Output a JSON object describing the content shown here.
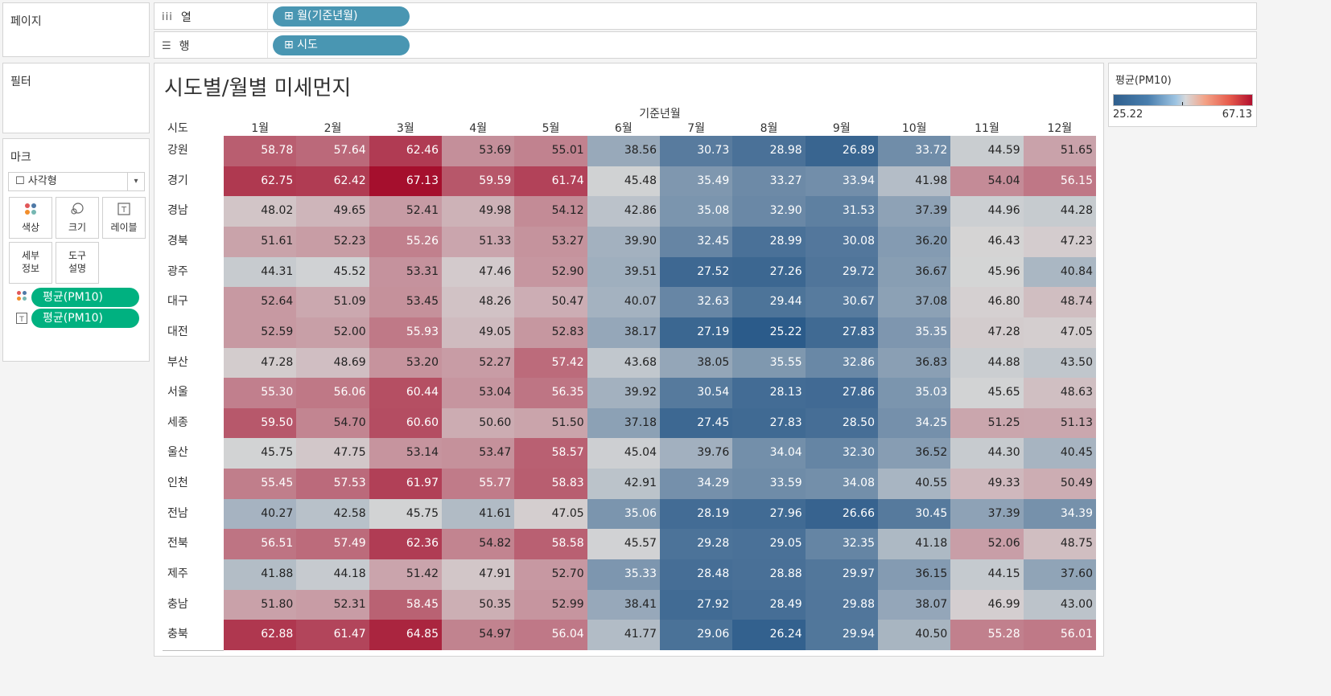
{
  "pages_panel": {
    "title": "페이지"
  },
  "columns_shelf": {
    "icon": "columns-icon",
    "label": "열",
    "pill": "⊞ 월(기준년월)"
  },
  "rows_shelf": {
    "icon": "rows-icon",
    "label": "행",
    "pill": "⊞ 시도"
  },
  "filters_panel": {
    "title": "필터"
  },
  "marks_panel": {
    "title": "마크",
    "mark_type": "☐ 사각형",
    "buttons": [
      {
        "icon": "color-icon",
        "label": "색상"
      },
      {
        "icon": "size-icon",
        "label": "크기"
      },
      {
        "icon": "label-icon",
        "label": "레이블"
      },
      {
        "icon": "detail-icon",
        "label": "세부\n정보"
      },
      {
        "icon": "tooltip-icon",
        "label": "도구\n설명"
      }
    ],
    "fields": [
      {
        "icon": "color-icon",
        "label": "평균(PM10)"
      },
      {
        "icon": "label-icon",
        "label": "평균(PM10)"
      }
    ]
  },
  "legend": {
    "title": "평균(PM10)",
    "min": "25.22",
    "max": "67.13"
  },
  "chart_data": {
    "type": "heatmap",
    "title": "시도별/월별 미세먼지",
    "x_field": "기준년월",
    "row_field": "시도",
    "columns": [
      "1월",
      "2월",
      "3월",
      "4월",
      "5월",
      "6월",
      "7월",
      "8월",
      "9월",
      "10월",
      "11월",
      "12월"
    ],
    "rows": [
      "강원",
      "경기",
      "경남",
      "경북",
      "광주",
      "대구",
      "대전",
      "부산",
      "서울",
      "세종",
      "울산",
      "인천",
      "전남",
      "전북",
      "제주",
      "충남",
      "충북"
    ],
    "values": [
      [
        "58.78",
        "57.64",
        "62.46",
        "53.69",
        "55.01",
        "38.56",
        "30.73",
        "28.98",
        "26.89",
        "33.72",
        "44.59",
        "51.65"
      ],
      [
        "62.75",
        "62.42",
        "67.13",
        "59.59",
        "61.74",
        "45.48",
        "35.49",
        "33.27",
        "33.94",
        "41.98",
        "54.04",
        "56.15"
      ],
      [
        "48.02",
        "49.65",
        "52.41",
        "49.98",
        "54.12",
        "42.86",
        "35.08",
        "32.90",
        "31.53",
        "37.39",
        "44.96",
        "44.28"
      ],
      [
        "51.61",
        "52.23",
        "55.26",
        "51.33",
        "53.27",
        "39.90",
        "32.45",
        "28.99",
        "30.08",
        "36.20",
        "46.43",
        "47.23"
      ],
      [
        "44.31",
        "45.52",
        "53.31",
        "47.46",
        "52.90",
        "39.51",
        "27.52",
        "27.26",
        "29.72",
        "36.67",
        "45.96",
        "40.84"
      ],
      [
        "52.64",
        "51.09",
        "53.45",
        "48.26",
        "50.47",
        "40.07",
        "32.63",
        "29.44",
        "30.67",
        "37.08",
        "46.80",
        "48.74"
      ],
      [
        "52.59",
        "52.00",
        "55.93",
        "49.05",
        "52.83",
        "38.17",
        "27.19",
        "25.22",
        "27.83",
        "35.35",
        "47.28",
        "47.05"
      ],
      [
        "47.28",
        "48.69",
        "53.20",
        "52.27",
        "57.42",
        "43.68",
        "38.05",
        "35.55",
        "32.86",
        "36.83",
        "44.88",
        "43.50"
      ],
      [
        "55.30",
        "56.06",
        "60.44",
        "53.04",
        "56.35",
        "39.92",
        "30.54",
        "28.13",
        "27.86",
        "35.03",
        "45.65",
        "48.63"
      ],
      [
        "59.50",
        "54.70",
        "60.60",
        "50.60",
        "51.50",
        "37.18",
        "27.45",
        "27.83",
        "28.50",
        "34.25",
        "51.25",
        "51.13"
      ],
      [
        "45.75",
        "47.75",
        "53.14",
        "53.47",
        "58.57",
        "45.04",
        "39.76",
        "34.04",
        "32.30",
        "36.52",
        "44.30",
        "40.45"
      ],
      [
        "55.45",
        "57.53",
        "61.97",
        "55.77",
        "58.83",
        "42.91",
        "34.29",
        "33.59",
        "34.08",
        "40.55",
        "49.33",
        "50.49"
      ],
      [
        "40.27",
        "42.58",
        "45.75",
        "41.61",
        "47.05",
        "35.06",
        "28.19",
        "27.96",
        "26.66",
        "30.45",
        "37.39",
        "34.39"
      ],
      [
        "56.51",
        "57.49",
        "62.36",
        "54.82",
        "58.58",
        "45.57",
        "29.28",
        "29.05",
        "32.35",
        "41.18",
        "52.06",
        "48.75"
      ],
      [
        "41.88",
        "44.18",
        "51.42",
        "47.91",
        "52.70",
        "35.33",
        "28.48",
        "28.88",
        "29.97",
        "36.15",
        "44.15",
        "37.60"
      ],
      [
        "51.80",
        "52.31",
        "58.45",
        "50.35",
        "52.99",
        "38.41",
        "27.92",
        "28.49",
        "29.88",
        "38.07",
        "46.99",
        "43.00"
      ],
      [
        "62.88",
        "61.47",
        "64.85",
        "54.97",
        "56.04",
        "41.77",
        "29.06",
        "26.24",
        "29.94",
        "40.50",
        "55.28",
        "56.01"
      ]
    ],
    "color_range": [
      25.22,
      67.13
    ],
    "center_value": 46.2,
    "colors": {
      "low": "#2b5b8a",
      "mid": "#d6d6d6",
      "high": "#a50f2d"
    }
  }
}
